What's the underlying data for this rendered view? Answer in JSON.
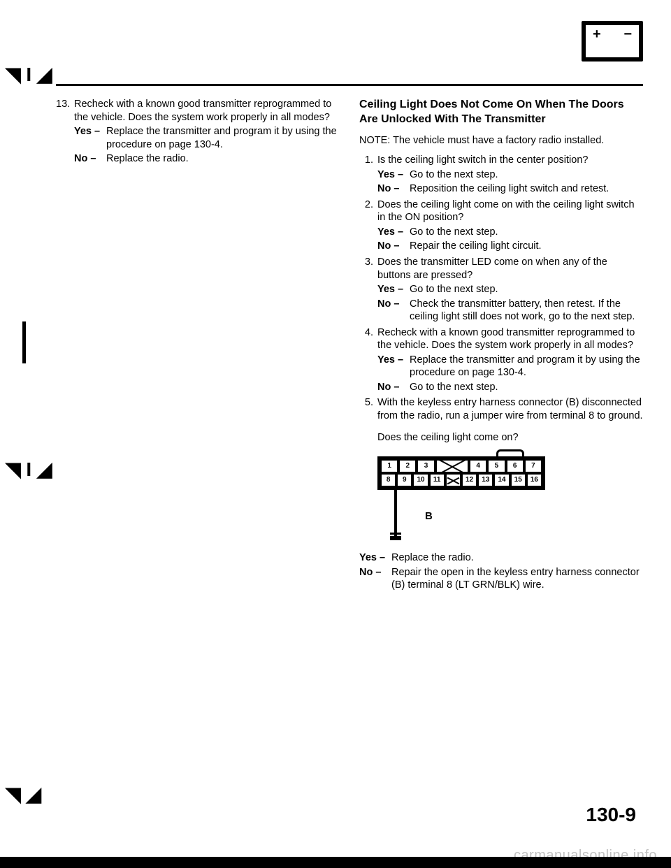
{
  "left": {
    "step13": {
      "num": "13.",
      "q": "Recheck with a known good transmitter reprogrammed to the vehicle. Does the system work properly in all modes?",
      "yes": "Replace the transmitter and program it by using the procedure on page 130-4.",
      "no": "Replace the radio."
    }
  },
  "right": {
    "heading": "Ceiling Light Does Not Come On When The Doors Are Unlocked With The Transmitter",
    "note": "NOTE: The vehicle must have a factory radio installed.",
    "s1": {
      "num": "1.",
      "q": "Is the ceiling light switch in the center position?",
      "yes": "Go to the next step.",
      "no": "Reposition the ceiling light switch and retest."
    },
    "s2": {
      "num": "2.",
      "q": "Does the ceiling light come on with the ceiling light switch in the ON position?",
      "yes": "Go to the next step.",
      "no": "Repair the ceiling light circuit."
    },
    "s3": {
      "num": "3.",
      "q": "Does the transmitter LED come on when any of the buttons are pressed?",
      "yes": "Go to the next step.",
      "no": "Check the transmitter battery, then retest. If the ceiling light still does not work, go to the next step."
    },
    "s4": {
      "num": "4.",
      "q": "Recheck with a known good transmitter reprogrammed to the vehicle. Does the system work properly in all modes?",
      "yes": "Replace the transmitter and program it by using the procedure on page 130-4.",
      "no": "Go to the next step."
    },
    "s5": {
      "num": "5.",
      "q": "With the keyless entry harness connector (B) disconnected from the radio, run a jumper wire from terminal 8 to ground.",
      "q2": "Does the ceiling light come on?"
    },
    "connector": {
      "row1": [
        "1",
        "2",
        "3",
        "X",
        "4",
        "5",
        "6",
        "7"
      ],
      "row2": [
        "8",
        "9",
        "10",
        "11",
        "X",
        "12",
        "13",
        "14",
        "15",
        "16"
      ],
      "label": "B"
    },
    "final": {
      "yes": "Replace the radio.",
      "no": "Repair the open in the keyless entry harness connector (B) terminal 8 (LT GRN/BLK) wire."
    }
  },
  "pageNumber": "130-9",
  "watermark": "carmanualsonline.info",
  "labels": {
    "yes": "Yes –",
    "no": "No –"
  }
}
